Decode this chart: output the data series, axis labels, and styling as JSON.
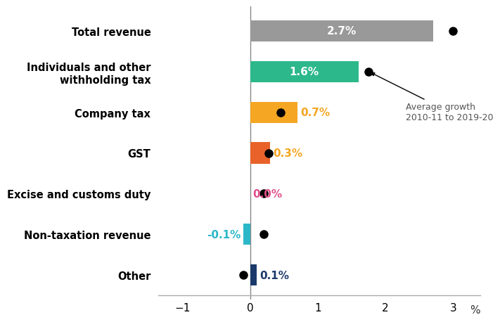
{
  "categories": [
    "Total revenue",
    "Individuals and other\nwithholding tax",
    "Company tax",
    "GST",
    "Excise and customs duty",
    "Non-taxation revenue",
    "Other"
  ],
  "bar_values": [
    2.7,
    1.6,
    0.7,
    0.3,
    0.0,
    -0.1,
    0.1
  ],
  "dot_values": [
    3.0,
    1.75,
    0.45,
    0.27,
    0.2,
    0.2,
    -0.1
  ],
  "bar_colors": [
    "#999999",
    "#2db88c",
    "#f5a623",
    "#e8622a",
    "#e87ca0",
    "#2ab8c8",
    "#1b3a6b"
  ],
  "label_values": [
    "2.7%",
    "1.6%",
    "0.7%",
    "0.3%",
    "0.0%",
    "-0.1%",
    "0.1%"
  ],
  "label_colors": [
    "#ffffff",
    "#ffffff",
    "#f5a623",
    "#f5a623",
    "#e0508a",
    "#2ab8c8",
    "#1b3a6b"
  ],
  "label_inside": [
    true,
    true,
    false,
    false,
    false,
    false,
    false
  ],
  "label_ha_inside": [
    "center",
    "center",
    "left",
    "left",
    "right",
    "right",
    "left"
  ],
  "xlabel": "%",
  "xlim": [
    -1.35,
    3.4
  ],
  "xticks": [
    -1,
    0,
    1,
    2,
    3
  ],
  "annotation_text": "Average growth\n2010-11 to 2019-20",
  "bar_height": 0.52,
  "figsize": [
    7.03,
    4.68
  ],
  "dpi": 100
}
